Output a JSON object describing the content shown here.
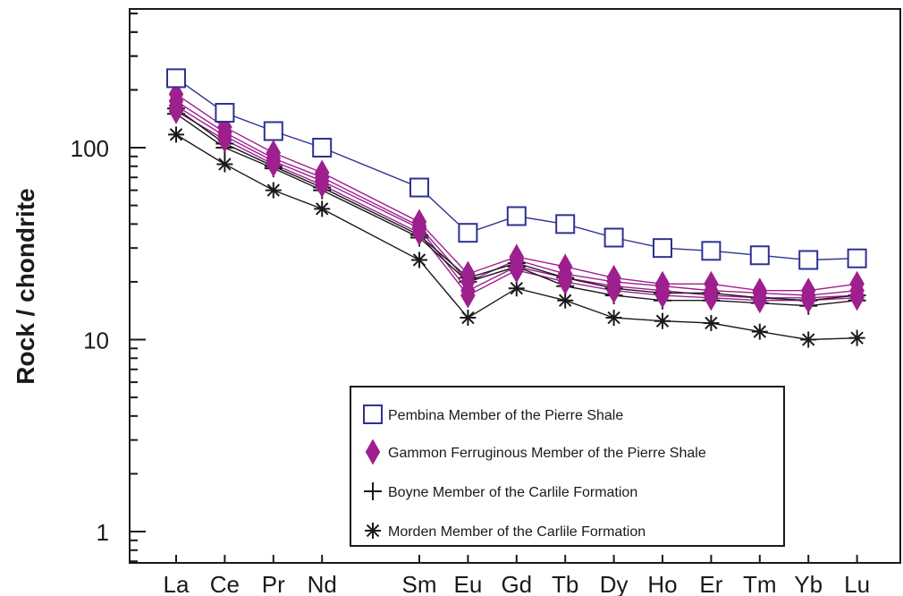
{
  "chart_data": {
    "type": "line",
    "scale": "log",
    "ylabel": "Rock / chondrite",
    "xlabel": "",
    "categories": [
      "La",
      "Ce",
      "Pr",
      "Nd",
      "Sm",
      "Eu",
      "Gd",
      "Tb",
      "Dy",
      "Ho",
      "Er",
      "Tm",
      "Yb",
      "Lu"
    ],
    "category_positions": [
      1,
      2,
      3,
      4,
      6,
      7,
      8,
      9,
      10,
      11,
      12,
      13,
      14,
      15
    ],
    "ylim": [
      0.7,
      600
    ],
    "y_ticks": [
      1,
      10,
      100
    ],
    "grid": false,
    "legend_position": "lower-right",
    "colors": {
      "pembina": "#2e3192",
      "gammon": "#9e1f8e",
      "boyne": "#1a1a1a",
      "morden": "#1a1a1a"
    },
    "legend": [
      {
        "label": "Pembina Member of the Pierre Shale",
        "marker": "square-open",
        "color": "#2e3192"
      },
      {
        "label": "Gammon Ferruginous Member of the Pierre Shale",
        "marker": "diamond-filled",
        "color": "#9e1f8e"
      },
      {
        "label": "Boyne Member of the Carlile Formation",
        "marker": "plus",
        "color": "#1a1a1a"
      },
      {
        "label": "Morden Member of the Carlile Formation",
        "marker": "asterisk",
        "color": "#1a1a1a"
      }
    ],
    "series": [
      {
        "group": "Pembina Member of the Pierre Shale",
        "marker": "square-open",
        "color": "#2e3192",
        "values": [
          230,
          152,
          122,
          100,
          62,
          36,
          44,
          40,
          34,
          30,
          29,
          27.5,
          26,
          26.5
        ]
      },
      {
        "group": "Gammon Ferruginous Member of the Pierre Shale",
        "marker": "diamond-filled",
        "color": "#9e1f8e",
        "values": [
          190,
          128,
          94,
          74,
          41,
          22,
          27,
          24,
          21,
          19.5,
          19.5,
          18,
          18,
          19.5
        ]
      },
      {
        "group": "Gammon Ferruginous Member of the Pierre Shale",
        "marker": "diamond-filled",
        "color": "#9e1f8e",
        "values": [
          175,
          120,
          88,
          70,
          39,
          20,
          26,
          22,
          20,
          19,
          18,
          17.5,
          17,
          18
        ]
      },
      {
        "group": "Gammon Ferruginous Member of the Pierre Shale",
        "marker": "diamond-filled",
        "color": "#9e1f8e",
        "values": [
          165,
          115,
          85,
          67,
          38,
          18,
          24,
          21,
          19,
          18,
          17,
          16.5,
          16.5,
          17
        ]
      },
      {
        "group": "Gammon Ferruginous Member of the Pierre Shale",
        "marker": "diamond-filled",
        "color": "#9e1f8e",
        "values": [
          155,
          110,
          82,
          64,
          36,
          17,
          23,
          20,
          18,
          17,
          16.5,
          16,
          16,
          16.5
        ]
      },
      {
        "group": "Boyne Member of the Carlile Formation",
        "marker": "plus",
        "color": "#1a1a1a",
        "values": [
          160,
          105,
          80,
          62,
          35,
          21,
          25,
          21,
          18.5,
          17.5,
          17.5,
          16.5,
          16,
          17
        ]
      },
      {
        "group": "Boyne Member of the Carlile Formation",
        "marker": "plus",
        "color": "#1a1a1a",
        "values": [
          150,
          100,
          78,
          60,
          34,
          20,
          24,
          19,
          17,
          16,
          16,
          15.5,
          15,
          16
        ]
      },
      {
        "group": "Morden Member of the Carlile Formation",
        "marker": "asterisk",
        "color": "#1a1a1a",
        "values": [
          117,
          82,
          60,
          48,
          26,
          13,
          18.5,
          16,
          13,
          12.5,
          12.2,
          11,
          10,
          10.2
        ]
      }
    ]
  }
}
